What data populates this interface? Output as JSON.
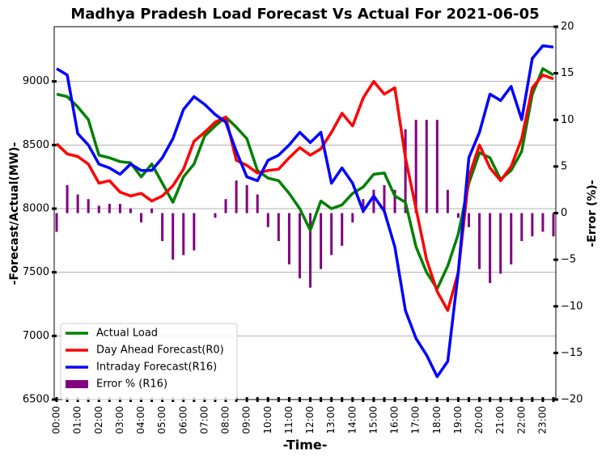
{
  "chart_data": {
    "type": "line",
    "title": "Madhya Pradesh Load Forecast Vs Actual For 2021-06-05",
    "xlabel": "-Time-",
    "ylabel": "-Forecast/Actual(MW)-",
    "y2label": "-Error (%)-",
    "categories": [
      "00:00",
      null,
      "01:00",
      null,
      "02:00",
      null,
      "03:00",
      null,
      "04:00",
      null,
      "05:00",
      null,
      "06:00",
      null,
      "07:00",
      null,
      "08:00",
      null,
      "09:00",
      null,
      "10:00",
      null,
      "11:00",
      null,
      "12:00",
      null,
      "13:00",
      null,
      "14:00",
      null,
      "15:00",
      null,
      "16:00",
      null,
      "17:00",
      null,
      "18:00",
      null,
      "19:00",
      null,
      "20:00",
      null,
      "21:00",
      null,
      "22:00",
      null,
      "23:00",
      null
    ],
    "series": [
      {
        "name": "Actual Load",
        "color": "#008000",
        "values": [
          8900,
          8880,
          8800,
          8700,
          8420,
          8400,
          8370,
          8360,
          8250,
          8350,
          8200,
          8050,
          8250,
          8350,
          8570,
          8650,
          8720,
          8640,
          8550,
          8300,
          8240,
          8220,
          8120,
          8000,
          7830,
          8060,
          8000,
          8030,
          8120,
          8170,
          8270,
          8280,
          8100,
          8050,
          7700,
          7500,
          7370,
          7550,
          7800,
          8200,
          8440,
          8400,
          8230,
          8300,
          8450,
          8900,
          9100,
          9050
        ]
      },
      {
        "name": "Day Ahead Forecast(R0)",
        "color": "#ff0000",
        "values": [
          8510,
          8430,
          8410,
          8350,
          8200,
          8220,
          8130,
          8100,
          8120,
          8060,
          8100,
          8180,
          8310,
          8530,
          8600,
          8680,
          8720,
          8380,
          8340,
          8280,
          8300,
          8310,
          8400,
          8480,
          8420,
          8470,
          8600,
          8750,
          8650,
          8870,
          9000,
          8900,
          8950,
          8400,
          8000,
          7600,
          7350,
          7200,
          7500,
          8250,
          8500,
          8320,
          8220,
          8330,
          8550,
          8950,
          9050,
          9020
        ]
      },
      {
        "name": "Intraday Forecast(R16)",
        "color": "#0000ff",
        "values": [
          9100,
          9050,
          8590,
          8500,
          8350,
          8320,
          8270,
          8350,
          8300,
          8300,
          8400,
          8550,
          8780,
          8880,
          8820,
          8740,
          8680,
          8450,
          8250,
          8220,
          8380,
          8420,
          8500,
          8600,
          8520,
          8600,
          8200,
          8320,
          8200,
          7980,
          8100,
          7980,
          7700,
          7200,
          6980,
          6850,
          6680,
          6800,
          7500,
          8400,
          8600,
          8900,
          8850,
          8960,
          8700,
          9180,
          9280,
          9270
        ]
      },
      {
        "name": "Error % (R16)",
        "color": "#800080",
        "kind": "bar",
        "axis": "y2",
        "values": [
          -2,
          3,
          2,
          1.5,
          0.8,
          1,
          1,
          0.5,
          -1,
          0.5,
          -3,
          -5,
          -4.5,
          -4,
          0,
          -0.5,
          1.5,
          3.5,
          3,
          2,
          -1.5,
          -3,
          -5.5,
          -7,
          -8,
          -6,
          -4.5,
          -3.5,
          -1,
          1.5,
          2.5,
          3,
          2.5,
          9,
          10,
          10,
          10,
          2.5,
          -0.5,
          -1.5,
          -6,
          -7.5,
          -6.5,
          -5.5,
          -3,
          -2.5,
          -2,
          -2.5
        ]
      }
    ],
    "ylim": [
      6500,
      9430
    ],
    "yticks": [
      6500,
      7000,
      7500,
      8000,
      8500,
      9000
    ],
    "y2lim": [
      -20,
      20
    ],
    "y2ticks": [
      {
        "value": -20,
        "label": "−20"
      },
      {
        "value": -15,
        "label": "−15"
      },
      {
        "value": -10,
        "label": "−10"
      },
      {
        "value": -5,
        "label": "−5"
      },
      0,
      5,
      10,
      15,
      20
    ],
    "grid": true,
    "legend": "lower left"
  }
}
